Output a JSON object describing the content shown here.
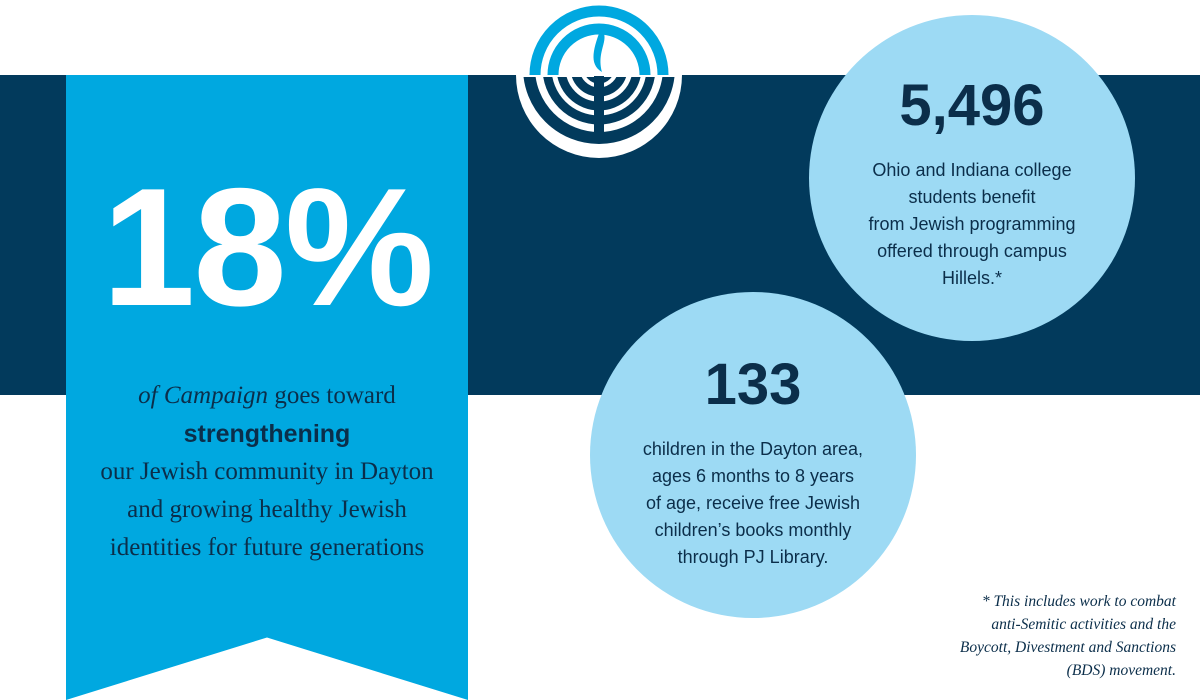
{
  "ribbon": {
    "percent": "18%",
    "line1_pre": "of",
    "line1_em": "Campaign",
    "line1_post": "goes toward",
    "strong": "strengthening",
    "line3": "our Jewish community in Dayton",
    "line4": "and growing healthy Jewish",
    "line5": "identities for future generations"
  },
  "stat1": {
    "number": "5,496",
    "lines": [
      "Ohio and Indiana college",
      "students benefit",
      "from Jewish programming",
      "offered through campus",
      "Hillels.*"
    ]
  },
  "stat2": {
    "number": "133",
    "lines": [
      "children in the Dayton area,",
      "ages 6 months to 8 years",
      "of age, receive free Jewish",
      "children’s books monthly",
      "through PJ Library."
    ]
  },
  "footnote": {
    "lines": [
      "* This includes work to combat",
      "anti-Semitic activities and the",
      "Boycott, Divestment and Sanctions",
      "(BDS) movement."
    ]
  },
  "logo": {
    "icon": "menorah-logo-icon"
  },
  "colors": {
    "navy": "#023a5c",
    "blue": "#00a8e0",
    "light": "#9ddaf4"
  }
}
